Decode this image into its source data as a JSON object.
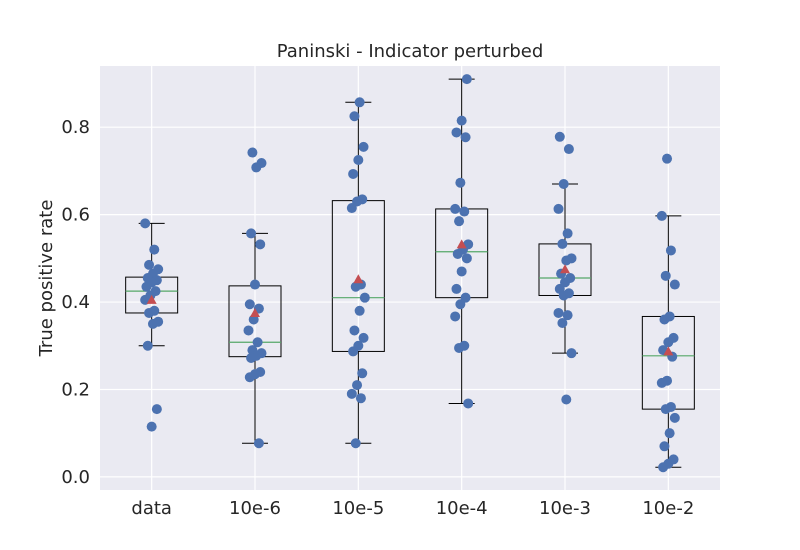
{
  "chart_data": {
    "type": "boxplot",
    "title": "Paninski - Indicator perturbed",
    "xlabel": "",
    "ylabel": "True positive rate",
    "ylim": [
      -0.03,
      0.94
    ],
    "yticks": [
      0.0,
      0.2,
      0.4,
      0.6,
      0.8
    ],
    "ytick_labels": [
      "0.0",
      "0.2",
      "0.4",
      "0.6",
      "0.8"
    ],
    "grid": true,
    "colors": {
      "background": "#eaeaf2",
      "grid": "#ffffff",
      "box": "#000000",
      "median": "#55a868",
      "mean": "#c44e52",
      "points": "#4c72b0"
    },
    "categories": [
      "data",
      "10e-6",
      "10e-5",
      "10e-4",
      "10e-3",
      "10e-2"
    ],
    "boxes": [
      {
        "category": "data",
        "whisker_low": 0.3,
        "q1": 0.375,
        "median": 0.425,
        "q3": 0.457,
        "whisker_high": 0.58,
        "mean": 0.405,
        "points": [
          0.58,
          0.52,
          0.485,
          0.475,
          0.465,
          0.455,
          0.45,
          0.445,
          0.435,
          0.425,
          0.415,
          0.405,
          0.38,
          0.375,
          0.355,
          0.35,
          0.3,
          0.155,
          0.115
        ]
      },
      {
        "category": "10e-6",
        "whisker_low": 0.077,
        "q1": 0.275,
        "median": 0.308,
        "q3": 0.437,
        "whisker_high": 0.557,
        "mean": 0.375,
        "points": [
          0.742,
          0.718,
          0.708,
          0.557,
          0.532,
          0.44,
          0.395,
          0.385,
          0.36,
          0.335,
          0.308,
          0.29,
          0.283,
          0.277,
          0.272,
          0.24,
          0.235,
          0.228,
          0.077
        ]
      },
      {
        "category": "10e-5",
        "whisker_low": 0.077,
        "q1": 0.287,
        "median": 0.41,
        "q3": 0.632,
        "whisker_high": 0.857,
        "mean": 0.452,
        "points": [
          0.857,
          0.825,
          0.755,
          0.725,
          0.693,
          0.635,
          0.63,
          0.615,
          0.44,
          0.435,
          0.41,
          0.38,
          0.335,
          0.318,
          0.3,
          0.287,
          0.237,
          0.21,
          0.19,
          0.18,
          0.077
        ]
      },
      {
        "category": "10e-4",
        "whisker_low": 0.168,
        "q1": 0.41,
        "median": 0.515,
        "q3": 0.613,
        "whisker_high": 0.91,
        "mean": 0.532,
        "points": [
          0.91,
          0.815,
          0.788,
          0.777,
          0.673,
          0.613,
          0.607,
          0.585,
          0.532,
          0.52,
          0.51,
          0.5,
          0.47,
          0.43,
          0.41,
          0.395,
          0.367,
          0.3,
          0.295,
          0.168
        ]
      },
      {
        "category": "10e-3",
        "whisker_low": 0.283,
        "q1": 0.415,
        "median": 0.455,
        "q3": 0.533,
        "whisker_high": 0.67,
        "mean": 0.475,
        "points": [
          0.778,
          0.75,
          0.67,
          0.613,
          0.557,
          0.533,
          0.5,
          0.495,
          0.465,
          0.455,
          0.445,
          0.43,
          0.42,
          0.415,
          0.375,
          0.37,
          0.352,
          0.283,
          0.177
        ]
      },
      {
        "category": "10e-2",
        "whisker_low": 0.022,
        "q1": 0.155,
        "median": 0.277,
        "q3": 0.367,
        "whisker_high": 0.597,
        "mean": 0.287,
        "points": [
          0.728,
          0.597,
          0.518,
          0.46,
          0.44,
          0.367,
          0.36,
          0.318,
          0.308,
          0.29,
          0.275,
          0.22,
          0.215,
          0.16,
          0.155,
          0.135,
          0.1,
          0.07,
          0.04,
          0.03,
          0.022
        ]
      }
    ]
  }
}
